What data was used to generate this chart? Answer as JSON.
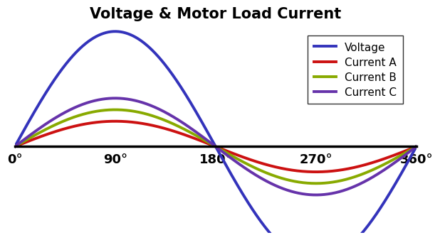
{
  "title": "Voltage & Motor Load Current",
  "title_fontsize": 15,
  "title_fontweight": "bold",
  "voltage_amplitude": 1.0,
  "current_A_amplitude": 0.22,
  "current_B_amplitude": 0.32,
  "current_C_amplitude": 0.42,
  "voltage_color": "#3333bb",
  "current_A_color": "#cc1111",
  "current_B_color": "#88aa00",
  "current_C_color": "#6633aa",
  "line_width": 2.8,
  "x_ticks_degrees": [
    0,
    90,
    180,
    270,
    360
  ],
  "x_tick_labels": [
    "0°",
    "90°",
    "180°",
    "270°",
    "360°"
  ],
  "legend_labels": [
    "Voltage",
    "Current A",
    "Current B",
    "Current C"
  ],
  "legend_fontsize": 11,
  "background_color": "#ffffff",
  "ylim": [
    -0.75,
    1.05
  ],
  "xlim_degrees": [
    0,
    360
  ],
  "tick_fontsize": 13
}
